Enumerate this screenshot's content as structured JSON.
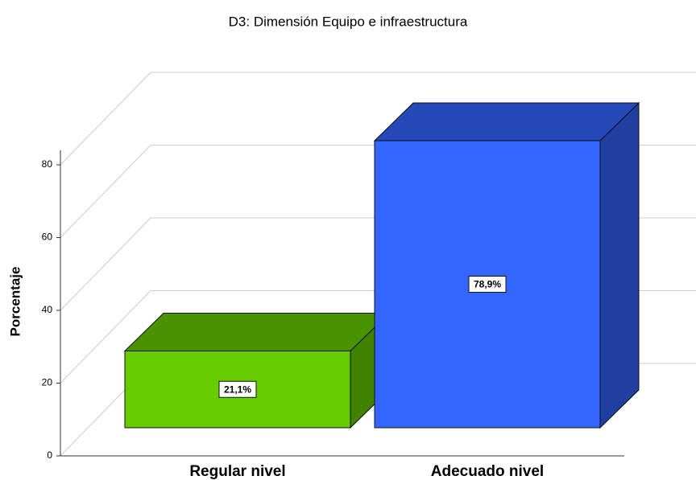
{
  "chart_data": {
    "type": "bar3d",
    "title": "D3: Dimensión Equipo e infraestructura",
    "y_label": "Porcentaje",
    "categories": [
      "Regular nivel",
      "Adecuado nivel"
    ],
    "values": [
      21.1,
      78.9
    ],
    "value_labels": [
      "21,1%",
      "78,9%"
    ],
    "colors": [
      "#66cc00",
      "#3366ff"
    ],
    "ylim": [
      0,
      80
    ],
    "yticks": [
      0,
      20,
      40,
      60,
      80
    ],
    "grid": true
  }
}
